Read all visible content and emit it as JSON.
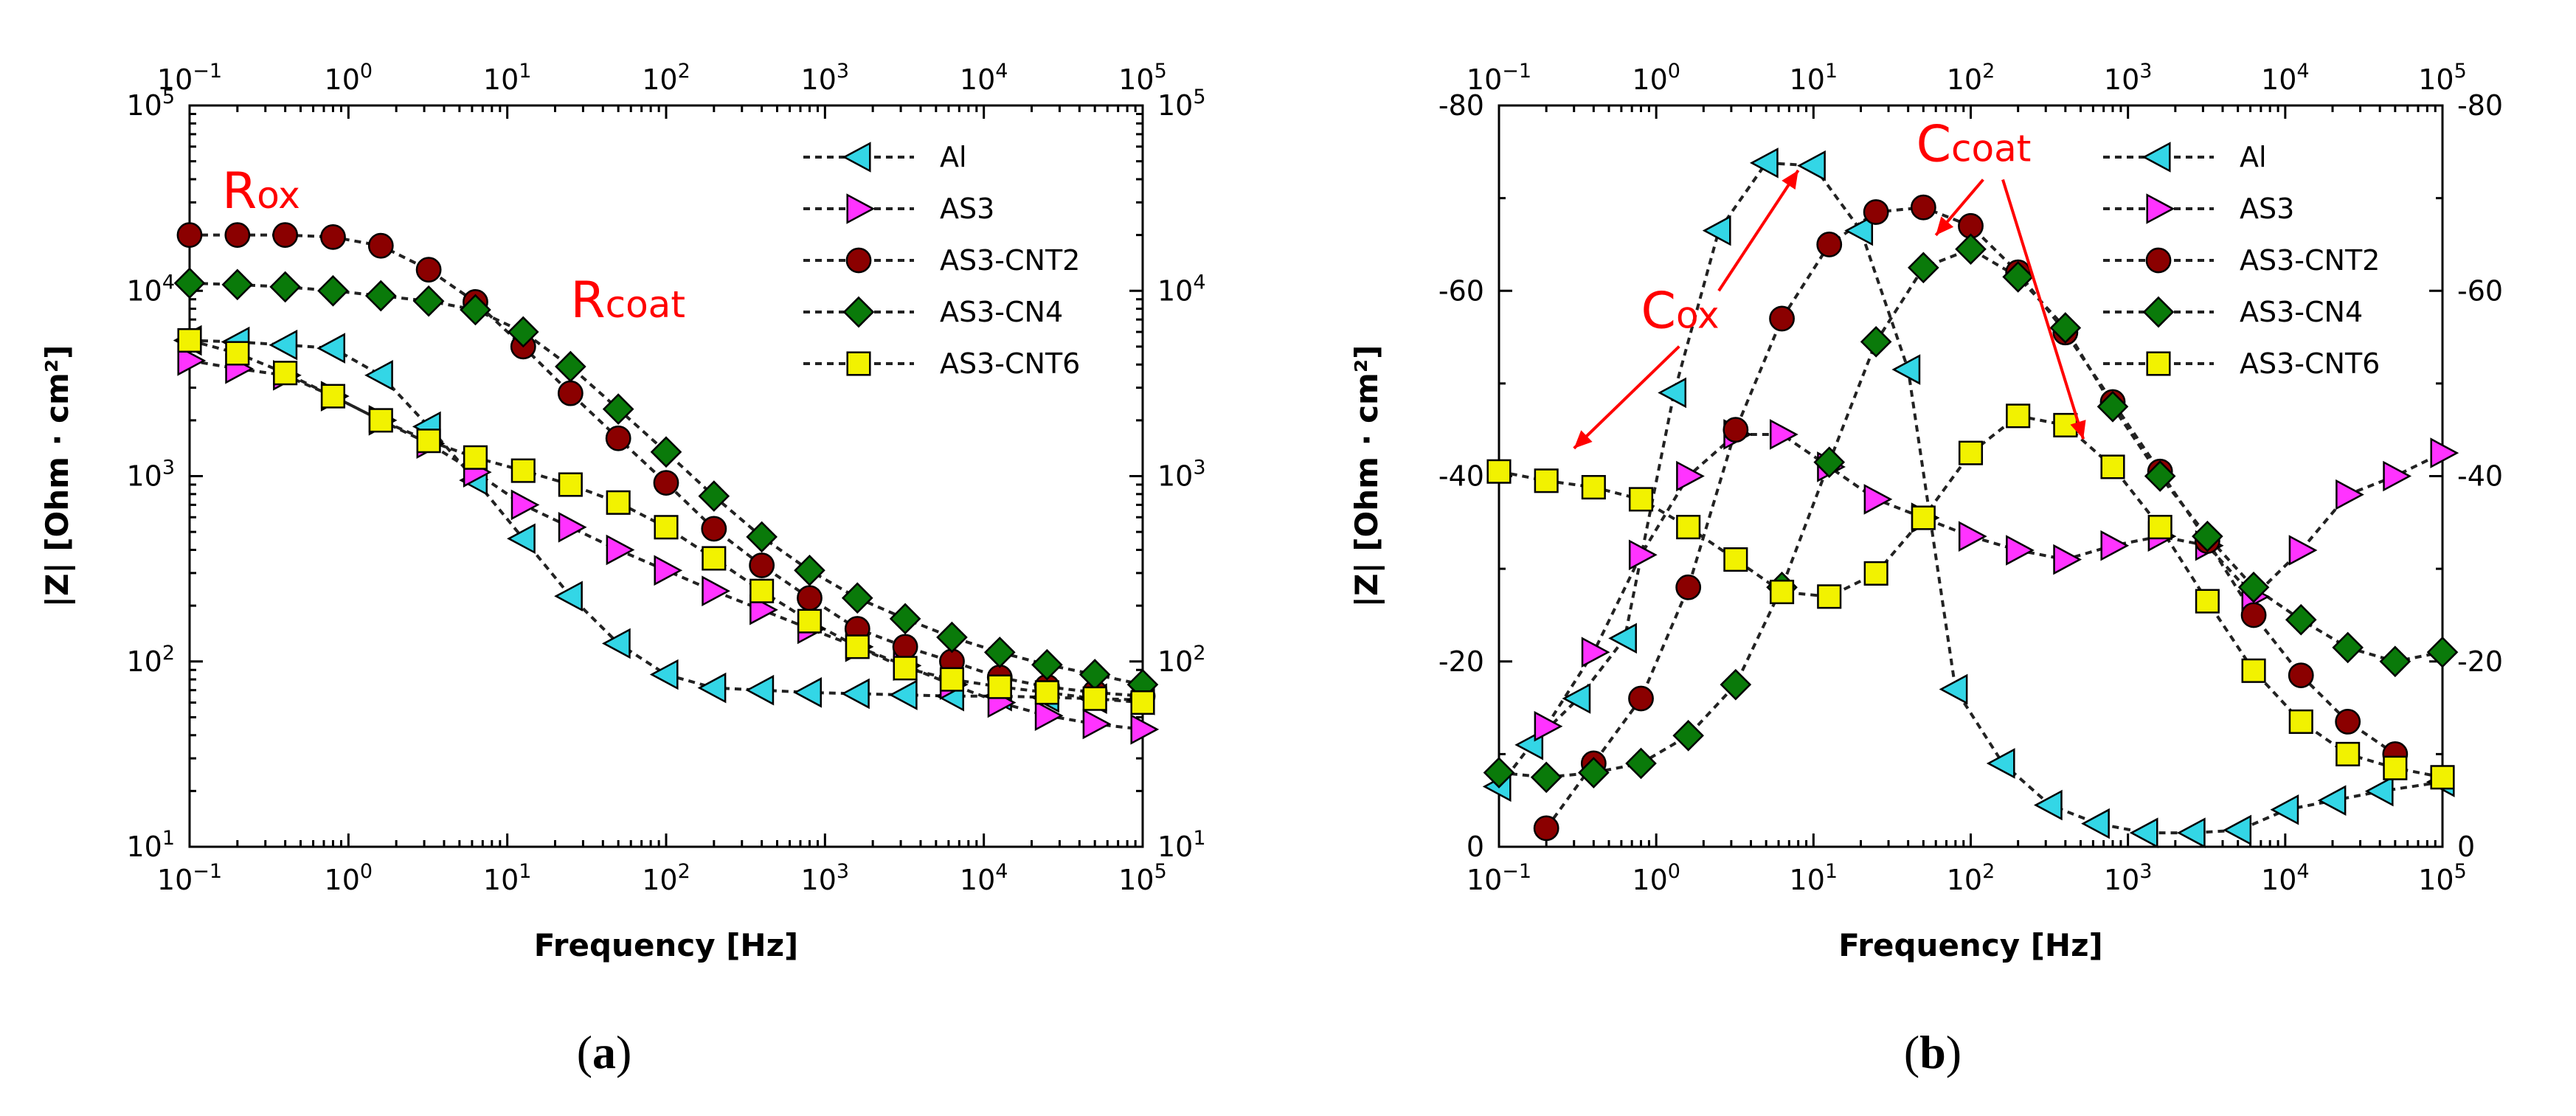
{
  "figure": {
    "captions": [
      "(a)",
      "(b)"
    ]
  },
  "chart_data": [
    {
      "id": "a",
      "type": "scatter",
      "caption_letter": "a",
      "xscale": "log",
      "yscale": "log",
      "xlim": [
        0.1,
        100000
      ],
      "ylim": [
        10,
        100000
      ],
      "xlabel": "Frequency [Hz]",
      "ylabel": "|Z| [Ohm · cm²]",
      "x_tick_labels": [
        {
          "base": "10",
          "exp": "−1",
          "value": 0.1
        },
        {
          "base": "10",
          "exp": "0",
          "value": 1
        },
        {
          "base": "10",
          "exp": "1",
          "value": 10
        },
        {
          "base": "10",
          "exp": "2",
          "value": 100
        },
        {
          "base": "10",
          "exp": "3",
          "value": 1000
        },
        {
          "base": "10",
          "exp": "4",
          "value": 10000
        },
        {
          "base": "10",
          "exp": "5",
          "value": 100000
        }
      ],
      "y_tick_labels": [
        {
          "base": "10",
          "exp": "1",
          "value": 10
        },
        {
          "base": "10",
          "exp": "2",
          "value": 100
        },
        {
          "base": "10",
          "exp": "3",
          "value": 1000
        },
        {
          "base": "10",
          "exp": "4",
          "value": 10000
        },
        {
          "base": "10",
          "exp": "5",
          "value": 100000
        }
      ],
      "legend_position": "top-right",
      "annotations": [
        {
          "main": "R",
          "sub": "ox",
          "at": [
            0.16,
            28000
          ]
        },
        {
          "main": "R",
          "sub": "coat",
          "at": [
            25,
            7200
          ]
        }
      ],
      "series": [
        {
          "name": "Al",
          "marker": "triangle-left",
          "color": "#33d6e6",
          "x": [
            0.1,
            0.2,
            0.4,
            0.8,
            1.6,
            3.2,
            6.3,
            12.6,
            25,
            50,
            100,
            200,
            400,
            800,
            1600,
            3200,
            6300,
            12600,
            25000,
            50000,
            100000
          ],
          "y": [
            5400,
            5300,
            5100,
            4900,
            3500,
            1850,
            950,
            460,
            225,
            125,
            85,
            72,
            70,
            68,
            67,
            66,
            65,
            65,
            64,
            63,
            62
          ]
        },
        {
          "name": "AS3",
          "marker": "triangle-right",
          "color": "#ff33ff",
          "x": [
            0.1,
            0.2,
            0.4,
            0.8,
            1.6,
            3.2,
            6.3,
            12.6,
            25,
            50,
            100,
            200,
            400,
            800,
            1600,
            3200,
            6300,
            12600,
            25000,
            50000,
            100000
          ],
          "y": [
            4200,
            3800,
            3500,
            2700,
            2000,
            1500,
            1050,
            700,
            530,
            400,
            310,
            240,
            190,
            150,
            120,
            95,
            75,
            60,
            51,
            46,
            43
          ]
        },
        {
          "name": "AS3-CNT2",
          "marker": "circle",
          "color": "#8b0000",
          "x": [
            0.1,
            0.2,
            0.4,
            0.8,
            1.6,
            3.2,
            6.3,
            12.6,
            25,
            50,
            100,
            200,
            400,
            800,
            1600,
            3200,
            6300,
            12600,
            25000,
            50000,
            100000
          ],
          "y": [
            20000,
            20000,
            20000,
            19500,
            17500,
            13000,
            8700,
            5000,
            2800,
            1600,
            920,
            520,
            330,
            220,
            150,
            120,
            100,
            82,
            73,
            68,
            65
          ]
        },
        {
          "name": "AS3-CN4",
          "marker": "diamond",
          "color": "#0a7a0a",
          "x": [
            0.1,
            0.2,
            0.4,
            0.8,
            1.6,
            3.2,
            6.3,
            12.6,
            25,
            50,
            100,
            200,
            400,
            800,
            1600,
            3200,
            6300,
            12600,
            25000,
            50000,
            100000
          ],
          "y": [
            11000,
            10800,
            10500,
            10000,
            9400,
            8800,
            7900,
            6000,
            3900,
            2300,
            1350,
            780,
            470,
            310,
            220,
            170,
            135,
            112,
            96,
            85,
            75
          ]
        },
        {
          "name": "AS3-CNT6",
          "marker": "square",
          "color": "#f2f200",
          "x": [
            0.1,
            0.2,
            0.4,
            0.8,
            1.6,
            3.2,
            6.3,
            12.6,
            25,
            50,
            100,
            200,
            400,
            800,
            1600,
            3200,
            6300,
            12600,
            25000,
            50000,
            100000
          ],
          "y": [
            5400,
            4600,
            3600,
            2700,
            2000,
            1550,
            1260,
            1070,
            900,
            720,
            530,
            360,
            240,
            165,
            120,
            92,
            80,
            73,
            68,
            63,
            60
          ]
        }
      ]
    },
    {
      "id": "b",
      "type": "scatter",
      "caption_letter": "b",
      "xscale": "log",
      "yscale": "linear",
      "y_inverted": true,
      "xlim": [
        0.1,
        100000
      ],
      "ylim": [
        0,
        -80
      ],
      "xlabel": "Frequency [Hz]",
      "ylabel": "|Z| [Ohm · cm²]",
      "x_tick_labels": [
        {
          "base": "10",
          "exp": "−1",
          "value": 0.1
        },
        {
          "base": "10",
          "exp": "0",
          "value": 1
        },
        {
          "base": "10",
          "exp": "1",
          "value": 10
        },
        {
          "base": "10",
          "exp": "2",
          "value": 100
        },
        {
          "base": "10",
          "exp": "3",
          "value": 1000
        },
        {
          "base": "10",
          "exp": "4",
          "value": 10000
        },
        {
          "base": "10",
          "exp": "5",
          "value": 100000
        }
      ],
      "y_tick_labels": [
        {
          "label": "-80",
          "value": -80
        },
        {
          "label": "-60",
          "value": -60
        },
        {
          "label": "-40",
          "value": -40
        },
        {
          "label": "-20",
          "value": -20
        },
        {
          "label": "0",
          "value": 0
        }
      ],
      "legend_position": "top-right",
      "annotations": [
        {
          "main": "C",
          "sub": "ox",
          "at": [
            0.8,
            -56
          ],
          "arrows": [
            {
              "from": [
                2.5,
                -60
              ],
              "to": [
                8,
                -73
              ]
            },
            {
              "from": [
                1.4,
                -54
              ],
              "to": [
                0.3,
                -43
              ]
            }
          ]
        },
        {
          "main": "C",
          "sub": "coat",
          "at": [
            45,
            -74
          ],
          "arrows": [
            {
              "from": [
                120,
                -72
              ],
              "to": [
                60,
                -66
              ]
            },
            {
              "from": [
                160,
                -72
              ],
              "to": [
                520,
                -44
              ]
            }
          ]
        }
      ],
      "series": [
        {
          "name": "Al",
          "marker": "triangle-left",
          "color": "#33d6e6",
          "x": [
            0.1,
            0.16,
            0.32,
            0.63,
            1.3,
            2.5,
            5,
            10,
            20,
            40,
            80,
            160,
            320,
            640,
            1300,
            2600,
            5100,
            10200,
            20400,
            40800,
            100000
          ],
          "y": [
            -6.5,
            -11,
            -16,
            -22.5,
            -49,
            -66.5,
            -73.8,
            -73.5,
            -66.5,
            -51.5,
            -17,
            -9,
            -4.5,
            -2.5,
            -1.5,
            -1.5,
            -1.8,
            -4,
            -5,
            -6,
            -7
          ]
        },
        {
          "name": "AS3",
          "marker": "triangle-right",
          "color": "#ff33ff",
          "x": [
            0.2,
            0.4,
            0.8,
            1.6,
            3.2,
            6.3,
            12.6,
            25,
            50,
            100,
            200,
            400,
            800,
            1600,
            3200,
            6300,
            12600,
            25000,
            50000,
            100000
          ],
          "y": [
            -13,
            -21,
            -31.5,
            -40,
            -44.5,
            -44.5,
            -41,
            -37.5,
            -35.5,
            -33.5,
            -32,
            -31,
            -32.5,
            -33.5,
            -32.5,
            -27,
            -32,
            -38,
            -40,
            -42.5
          ]
        },
        {
          "name": "AS3-CNT2",
          "marker": "circle",
          "color": "#8b0000",
          "x": [
            0.2,
            0.4,
            0.8,
            1.6,
            3.2,
            6.3,
            12.6,
            25,
            50,
            100,
            200,
            400,
            800,
            1600,
            3200,
            6300,
            12600,
            25000,
            50000
          ],
          "y": [
            -2,
            -9,
            -16,
            -28,
            -45,
            -57,
            -65,
            -68.5,
            -69,
            -67,
            -62,
            -55.5,
            -48,
            -40.5,
            -33,
            -25,
            -18.5,
            -13.5,
            -10
          ]
        },
        {
          "name": "AS3-CN4",
          "marker": "diamond",
          "color": "#0a7a0a",
          "x": [
            0.1,
            0.2,
            0.4,
            0.8,
            1.6,
            3.2,
            6.3,
            12.6,
            25,
            50,
            100,
            200,
            400,
            800,
            1600,
            3200,
            6300,
            12600,
            25000,
            50000,
            100000
          ],
          "y": [
            -8,
            -7.5,
            -8,
            -9,
            -12,
            -17.5,
            -28,
            -41.5,
            -54.5,
            -62.5,
            -64.5,
            -61.5,
            -56,
            -47.5,
            -40,
            -33.5,
            -28,
            -24.5,
            -21.5,
            -20,
            -21
          ]
        },
        {
          "name": "AS3-CNT6",
          "marker": "square",
          "color": "#f2f200",
          "x": [
            0.1,
            0.2,
            0.4,
            0.8,
            1.6,
            3.2,
            6.3,
            12.6,
            25,
            50,
            100,
            200,
            400,
            800,
            1600,
            3200,
            6300,
            12600,
            25000,
            50000,
            100000
          ],
          "y": [
            -40.5,
            -39.5,
            -38.8,
            -37.5,
            -34.5,
            -31,
            -27.5,
            -27,
            -29.5,
            -35.5,
            -42.5,
            -46.5,
            -45.5,
            -41,
            -34.5,
            -26.5,
            -19,
            -13.5,
            -10,
            -8.5,
            -7.5
          ]
        }
      ]
    }
  ]
}
